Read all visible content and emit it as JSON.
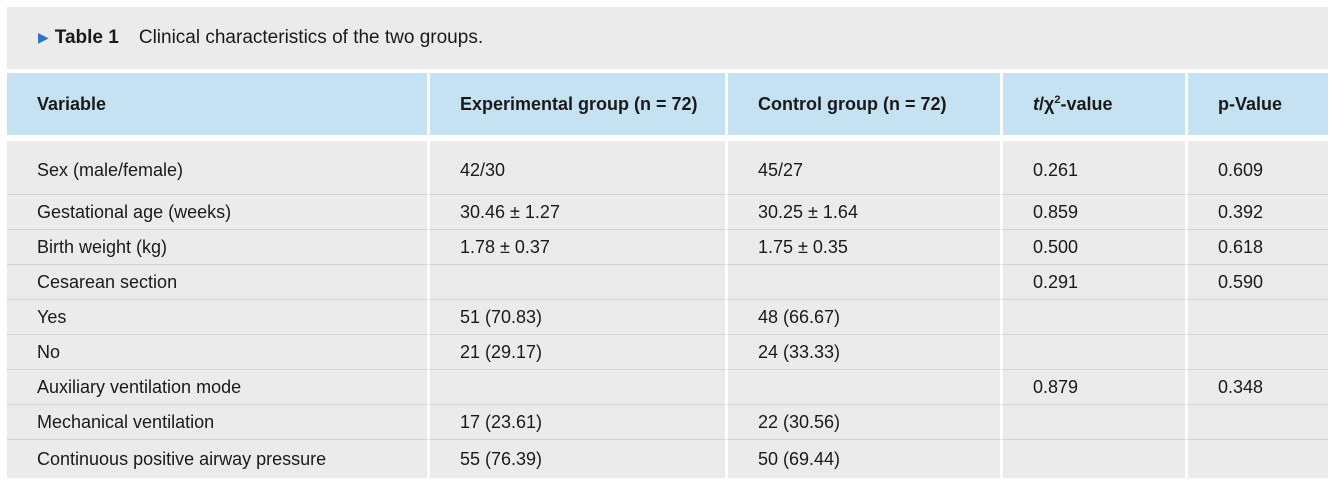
{
  "caption": {
    "label": "Table 1",
    "title": "Clinical characteristics of the two groups."
  },
  "table": {
    "headers": {
      "variable": "Variable",
      "experimental": "Experimental group (n = 72)",
      "control": "Control group (n = 72)",
      "stat_t": "t",
      "stat_mid": "/χ",
      "stat_sup": "2",
      "stat_suffix": "-value",
      "p": "p-Value"
    },
    "rows": [
      {
        "variable": "Sex (male/female)",
        "experimental": "42/30",
        "control": "45/27",
        "stat": "0.261",
        "p": "0.609"
      },
      {
        "variable": "Gestational age (weeks)",
        "experimental": "30.46 ± 1.27",
        "control": "30.25 ± 1.64",
        "stat": "0.859",
        "p": "0.392"
      },
      {
        "variable": "Birth weight (kg)",
        "experimental": "1.78 ± 0.37",
        "control": "1.75 ± 0.35",
        "stat": "0.500",
        "p": "0.618"
      },
      {
        "variable": "Cesarean section",
        "experimental": "",
        "control": "",
        "stat": "0.291",
        "p": "0.590"
      },
      {
        "variable": "Yes",
        "experimental": "51 (70.83)",
        "control": "48 (66.67)",
        "stat": "",
        "p": ""
      },
      {
        "variable": "No",
        "experimental": "21 (29.17)",
        "control": "24 (33.33)",
        "stat": "",
        "p": ""
      },
      {
        "variable": "Auxiliary ventilation mode",
        "experimental": "",
        "control": "",
        "stat": "0.879",
        "p": "0.348"
      },
      {
        "variable": "Mechanical ventilation",
        "experimental": "17 (23.61)",
        "control": "22 (30.56)",
        "stat": "",
        "p": ""
      },
      {
        "variable": "Continuous positive airway pressure",
        "experimental": "55 (76.39)",
        "control": "50 (69.44)",
        "stat": "",
        "p": ""
      }
    ]
  }
}
